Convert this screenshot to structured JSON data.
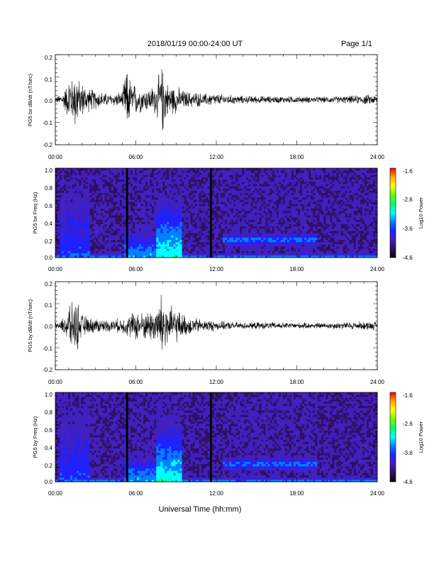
{
  "header": {
    "title": "2018/01/19  00:00-24:00 UT",
    "page": "Page 1/1"
  },
  "footer": {
    "xlabel": "Universal Time (hh:mm)"
  },
  "colorbar": {
    "label": "Log10 Power",
    "ticks": [
      "-1.6",
      "-2.6",
      "-3.6",
      "-4.6"
    ],
    "colors": [
      "#ff0000",
      "#ffaa00",
      "#ffff00",
      "#66ff00",
      "#00ff66",
      "#00ffff",
      "#0080ff",
      "#2020ff",
      "#4020c0",
      "#301060",
      "#100010"
    ]
  },
  "chart_data": [
    {
      "type": "line",
      "ylabel": "PG5 bx dB/dt (nT/sec)",
      "xlim": [
        0,
        24
      ],
      "ylim": [
        -0.2,
        0.2
      ],
      "xticks": [
        "00:00",
        "06:00",
        "12:00",
        "18:00",
        "24:00"
      ],
      "yticks": [
        "0.2",
        "0.1",
        "0.0",
        "-0.1",
        "-0.2"
      ],
      "series": [
        {
          "x_hours": [
            0,
            0.5,
            1.0,
            1.1,
            1.2,
            1.3,
            1.6,
            1.7,
            1.8,
            2.0,
            2.5,
            3.0,
            4.0,
            5.0,
            5.2,
            5.3,
            5.5,
            5.6,
            5.8,
            6.0,
            6.5,
            7.0,
            7.5,
            7.8,
            8.0,
            8.1,
            8.3,
            8.5,
            9.0,
            9.5,
            10.0,
            10.5,
            11.0,
            11.5,
            12.0,
            13.0,
            14.0,
            15.0,
            16.0,
            17.0,
            18.0,
            19.0,
            20.0,
            21.0,
            22.0,
            23.0,
            24.0
          ],
          "amplitude": [
            0.015,
            0.03,
            0.1,
            0.18,
            0.12,
            0.1,
            0.18,
            0.14,
            0.08,
            0.09,
            0.06,
            0.05,
            0.03,
            0.04,
            0.13,
            0.15,
            0.14,
            0.1,
            0.08,
            0.08,
            0.06,
            0.06,
            0.08,
            0.14,
            0.18,
            0.15,
            0.09,
            0.08,
            0.07,
            0.05,
            0.04,
            0.04,
            0.03,
            0.035,
            0.03,
            0.025,
            0.02,
            0.02,
            0.018,
            0.018,
            0.018,
            0.016,
            0.016,
            0.018,
            0.02,
            0.025,
            0.025
          ]
        }
      ]
    },
    {
      "type": "heatmap",
      "ylabel": "PG5 bx Freq (Hz)",
      "xlim": [
        0,
        24
      ],
      "ylim": [
        0.0,
        1.0
      ],
      "xticks": [
        "00:00",
        "06:00",
        "12:00",
        "18:00",
        "24:00"
      ],
      "yticks": [
        "1.0",
        "0.8",
        "0.6",
        "0.4",
        "0.2",
        "0.0"
      ],
      "zlim": [
        -4.6,
        -1.6
      ],
      "gaps_hours": [
        5.35,
        11.6
      ],
      "background_log10_power": -4.2,
      "features": [
        {
          "name": "lowfreq",
          "x0": 0,
          "x1": 24,
          "f_max": 0.05,
          "level": -3.2
        },
        {
          "name": "early",
          "x0": 0.3,
          "x1": 2.5,
          "f_max": 0.9,
          "level": -3.6
        },
        {
          "name": "mid",
          "x0": 5.2,
          "x1": 7.8,
          "f_max": 0.35,
          "level": -3.3
        },
        {
          "name": "peak",
          "x0": 7.5,
          "x1": 9.5,
          "f_max": 0.75,
          "level": -3.0
        },
        {
          "name": "band",
          "x0": 12.5,
          "x1": 19.5,
          "f_center": 0.2,
          "f_width": 0.08,
          "level": -3.4
        }
      ]
    },
    {
      "type": "line",
      "ylabel": "PG5 by dB/dt (nT/sec)",
      "xlim": [
        0,
        24
      ],
      "ylim": [
        -0.2,
        0.2
      ],
      "xticks": [
        "00:00",
        "06:00",
        "12:00",
        "18:00",
        "24:00"
      ],
      "yticks": [
        "0.2",
        "0.1",
        "0.0",
        "-0.1",
        "-0.2"
      ],
      "series": [
        {
          "x_hours": [
            0,
            0.5,
            1.0,
            1.1,
            1.2,
            1.3,
            1.6,
            1.7,
            1.8,
            2.0,
            2.5,
            3.0,
            4.0,
            5.0,
            5.5,
            6.0,
            6.5,
            7.0,
            7.5,
            7.8,
            8.0,
            8.1,
            8.3,
            8.5,
            9.0,
            9.5,
            10.0,
            10.5,
            11.0,
            11.5,
            12.0,
            13.0,
            14.0,
            15.0,
            16.0,
            17.0,
            18.0,
            19.0,
            20.0,
            21.0,
            22.0,
            23.0,
            24.0
          ],
          "amplitude": [
            0.015,
            0.03,
            0.1,
            0.16,
            0.12,
            0.1,
            0.14,
            0.12,
            0.08,
            0.06,
            0.04,
            0.04,
            0.03,
            0.04,
            0.06,
            0.08,
            0.07,
            0.08,
            0.1,
            0.14,
            0.2,
            0.18,
            0.13,
            0.1,
            0.09,
            0.06,
            0.05,
            0.04,
            0.03,
            0.03,
            0.025,
            0.02,
            0.018,
            0.018,
            0.018,
            0.016,
            0.016,
            0.016,
            0.016,
            0.018,
            0.02,
            0.022,
            0.022
          ]
        }
      ]
    },
    {
      "type": "heatmap",
      "ylabel": "PG5 by Freq (Hz)",
      "xlim": [
        0,
        24
      ],
      "ylim": [
        0.0,
        1.0
      ],
      "xticks": [
        "00:00",
        "06:00",
        "12:00",
        "18:00",
        "24:00"
      ],
      "yticks": [
        "1.0",
        "0.8",
        "0.6",
        "0.4",
        "0.2",
        "0.0"
      ],
      "zlim": [
        -4.6,
        -1.6
      ],
      "gaps_hours": [
        5.35,
        11.6
      ],
      "background_log10_power": -4.2,
      "features": [
        {
          "name": "lowfreq",
          "x0": 0,
          "x1": 24,
          "f_max": 0.05,
          "level": -3.2
        },
        {
          "name": "early",
          "x0": 0.3,
          "x1": 2.5,
          "f_max": 0.9,
          "level": -3.6
        },
        {
          "name": "mid",
          "x0": 5.2,
          "x1": 7.8,
          "f_max": 0.35,
          "level": -3.3
        },
        {
          "name": "peak",
          "x0": 7.5,
          "x1": 9.5,
          "f_max": 0.75,
          "level": -3.0
        },
        {
          "name": "band",
          "x0": 12.5,
          "x1": 19.5,
          "f_center": 0.2,
          "f_width": 0.08,
          "level": -3.4
        }
      ]
    }
  ]
}
